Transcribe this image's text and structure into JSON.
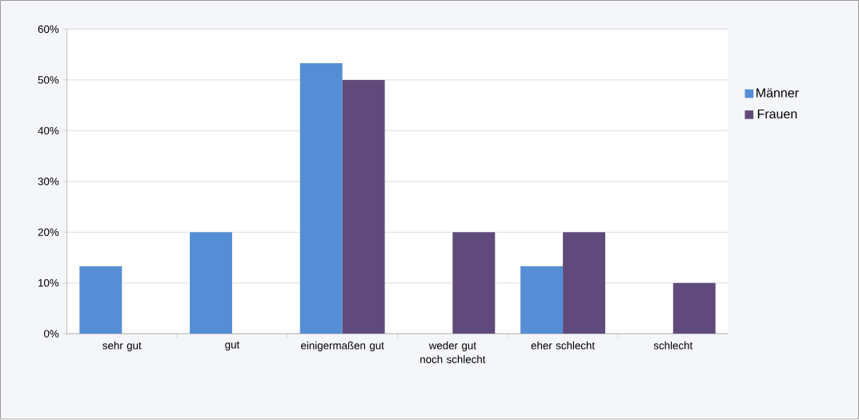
{
  "chart_data": {
    "type": "bar",
    "categories": [
      "sehr gut",
      "gut",
      "einigermaßen gut",
      "weder gut noch schlecht",
      "eher schlecht",
      "schlecht"
    ],
    "series": [
      {
        "name": "Männer",
        "color": "#558ed5",
        "values": [
          13.3,
          20,
          53.3,
          null,
          13.3,
          null
        ]
      },
      {
        "name": "Frauen",
        "color": "#604a7b",
        "values": [
          null,
          null,
          50,
          20,
          20,
          10
        ]
      }
    ],
    "ylim": [
      0,
      60
    ],
    "yticks": [
      {
        "value": 0,
        "label": "0%"
      },
      {
        "value": 10,
        "label": "10%"
      },
      {
        "value": 20,
        "label": "20%"
      },
      {
        "value": 30,
        "label": "30%"
      },
      {
        "value": 40,
        "label": "40%"
      },
      {
        "value": 50,
        "label": "50%"
      },
      {
        "value": 60,
        "label": "60%"
      }
    ],
    "grid": "y",
    "legend": "right"
  }
}
